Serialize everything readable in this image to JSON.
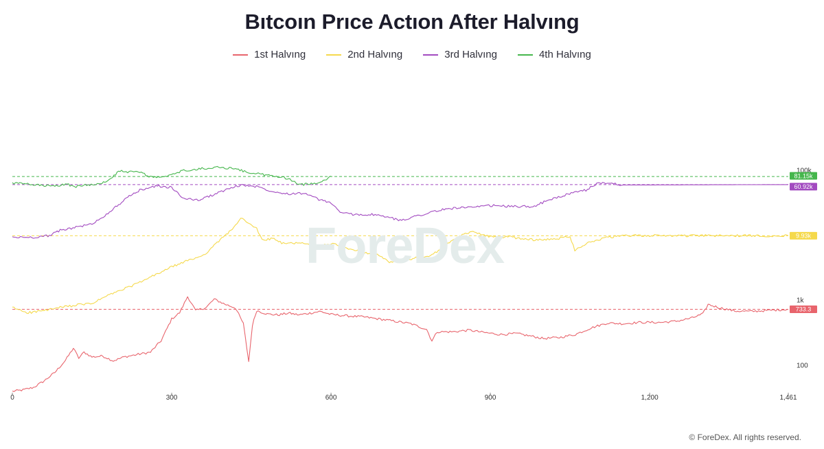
{
  "chart_data": {
    "type": "line",
    "title": "Bıtcoın Prıce Actıon After Halvıng",
    "xlabel": "",
    "ylabel": "",
    "y_scale": "log",
    "xlim": [
      0,
      1461
    ],
    "ylim": [
      40,
      200000
    ],
    "x_ticks": [
      {
        "value": 0,
        "label": "0"
      },
      {
        "value": 300,
        "label": "300"
      },
      {
        "value": 600,
        "label": "600"
      },
      {
        "value": 900,
        "label": "900"
      },
      {
        "value": 1200,
        "label": "1,200"
      },
      {
        "value": 1461,
        "label": "1,461"
      }
    ],
    "y_ticks": [
      {
        "value": 100,
        "label": "100"
      },
      {
        "value": 1000,
        "label": "1k"
      },
      {
        "value": 100000,
        "label": "100k"
      }
    ],
    "legend_position": "top-center",
    "grid": false,
    "series": [
      {
        "name": "1st Halvıng",
        "color": "#e8646c",
        "last_label": "733.3",
        "last_value": 733.3,
        "points": [
          [
            0,
            40
          ],
          [
            20,
            42
          ],
          [
            40,
            46
          ],
          [
            60,
            58
          ],
          [
            80,
            78
          ],
          [
            100,
            120
          ],
          [
            115,
            185
          ],
          [
            125,
            130
          ],
          [
            135,
            160
          ],
          [
            150,
            135
          ],
          [
            170,
            140
          ],
          [
            190,
            118
          ],
          [
            210,
            135
          ],
          [
            240,
            150
          ],
          [
            260,
            160
          ],
          [
            280,
            240
          ],
          [
            300,
            520
          ],
          [
            315,
            650
          ],
          [
            330,
            1150
          ],
          [
            345,
            700
          ],
          [
            365,
            780
          ],
          [
            380,
            1050
          ],
          [
            400,
            880
          ],
          [
            420,
            770
          ],
          [
            435,
            440
          ],
          [
            445,
            115
          ],
          [
            452,
            420
          ],
          [
            460,
            700
          ],
          [
            480,
            620
          ],
          [
            500,
            600
          ],
          [
            520,
            640
          ],
          [
            540,
            600
          ],
          [
            560,
            640
          ],
          [
            580,
            680
          ],
          [
            600,
            610
          ],
          [
            630,
            580
          ],
          [
            660,
            560
          ],
          [
            690,
            520
          ],
          [
            720,
            480
          ],
          [
            750,
            440
          ],
          [
            780,
            360
          ],
          [
            790,
            240
          ],
          [
            800,
            330
          ],
          [
            830,
            330
          ],
          [
            860,
            350
          ],
          [
            890,
            320
          ],
          [
            920,
            300
          ],
          [
            950,
            310
          ],
          [
            980,
            280
          ],
          [
            1000,
            260
          ],
          [
            1030,
            270
          ],
          [
            1060,
            300
          ],
          [
            1090,
            380
          ],
          [
            1120,
            450
          ],
          [
            1150,
            440
          ],
          [
            1180,
            460
          ],
          [
            1220,
            460
          ],
          [
            1250,
            480
          ],
          [
            1280,
            540
          ],
          [
            1300,
            620
          ],
          [
            1310,
            870
          ],
          [
            1330,
            780
          ],
          [
            1360,
            690
          ],
          [
            1390,
            680
          ],
          [
            1420,
            700
          ],
          [
            1461,
            733.3
          ]
        ]
      },
      {
        "name": "2nd Halvıng",
        "color": "#f5d94c",
        "last_label": "9.93k",
        "last_value": 9930,
        "points": [
          [
            0,
            780
          ],
          [
            30,
            650
          ],
          [
            60,
            700
          ],
          [
            90,
            780
          ],
          [
            120,
            850
          ],
          [
            150,
            900
          ],
          [
            180,
            1200
          ],
          [
            210,
            1500
          ],
          [
            240,
            1900
          ],
          [
            270,
            2500
          ],
          [
            300,
            3300
          ],
          [
            330,
            4100
          ],
          [
            360,
            5000
          ],
          [
            380,
            7000
          ],
          [
            400,
            10000
          ],
          [
            420,
            14000
          ],
          [
            430,
            19000
          ],
          [
            440,
            16000
          ],
          [
            460,
            13000
          ],
          [
            470,
            8500
          ],
          [
            490,
            9000
          ],
          [
            510,
            7500
          ],
          [
            540,
            7800
          ],
          [
            570,
            6800
          ],
          [
            600,
            7500
          ],
          [
            630,
            6400
          ],
          [
            660,
            5600
          ],
          [
            690,
            5000
          ],
          [
            710,
            3800
          ],
          [
            730,
            4200
          ],
          [
            760,
            4500
          ],
          [
            790,
            5000
          ],
          [
            820,
            7500
          ],
          [
            850,
            10500
          ],
          [
            870,
            11500
          ],
          [
            900,
            9500
          ],
          [
            930,
            9600
          ],
          [
            960,
            9000
          ],
          [
            990,
            8500
          ],
          [
            1020,
            8800
          ],
          [
            1050,
            9800
          ],
          [
            1059,
            6000
          ],
          [
            1080,
            7500
          ],
          [
            1110,
            9000
          ],
          [
            1140,
            9800
          ],
          [
            1170,
            10000
          ],
          [
            1461,
            9930
          ]
        ]
      },
      {
        "name": "3rd Halvıng",
        "color": "#a24ac0",
        "last_label": "60.92k",
        "last_value": 60920,
        "points": [
          [
            0,
            9400
          ],
          [
            40,
            9400
          ],
          [
            70,
            10000
          ],
          [
            90,
            12000
          ],
          [
            120,
            13500
          ],
          [
            150,
            15000
          ],
          [
            180,
            22000
          ],
          [
            200,
            30000
          ],
          [
            220,
            40000
          ],
          [
            240,
            50000
          ],
          [
            270,
            58000
          ],
          [
            300,
            55000
          ],
          [
            320,
            38000
          ],
          [
            350,
            35000
          ],
          [
            370,
            40000
          ],
          [
            400,
            50000
          ],
          [
            430,
            60000
          ],
          [
            460,
            57000
          ],
          [
            490,
            48000
          ],
          [
            520,
            44000
          ],
          [
            550,
            45000
          ],
          [
            580,
            35000
          ],
          [
            600,
            32000
          ],
          [
            620,
            22000
          ],
          [
            650,
            21000
          ],
          [
            680,
            21000
          ],
          [
            710,
            19000
          ],
          [
            730,
            17000
          ],
          [
            760,
            20000
          ],
          [
            790,
            23000
          ],
          [
            810,
            25000
          ],
          [
            840,
            27000
          ],
          [
            870,
            27000
          ],
          [
            900,
            29000
          ],
          [
            940,
            28000
          ],
          [
            980,
            28000
          ],
          [
            1010,
            35000
          ],
          [
            1040,
            42000
          ],
          [
            1080,
            50000
          ],
          [
            1100,
            63000
          ],
          [
            1120,
            65000
          ],
          [
            1150,
            60000
          ],
          [
            1461,
            60920
          ]
        ]
      },
      {
        "name": "4th Halvıng",
        "color": "#45b64c",
        "last_label": "81.15k",
        "last_value": 81150,
        "points": [
          [
            0,
            64000
          ],
          [
            20,
            63000
          ],
          [
            40,
            60000
          ],
          [
            60,
            59000
          ],
          [
            80,
            57000
          ],
          [
            100,
            62000
          ],
          [
            120,
            57000
          ],
          [
            140,
            60000
          ],
          [
            160,
            63000
          ],
          [
            180,
            68000
          ],
          [
            200,
            98000
          ],
          [
            220,
            95000
          ],
          [
            240,
            95000
          ],
          [
            260,
            80000
          ],
          [
            280,
            78000
          ],
          [
            300,
            85000
          ],
          [
            320,
            100000
          ],
          [
            340,
            102000
          ],
          [
            360,
            108000
          ],
          [
            380,
            112000
          ],
          [
            400,
            110000
          ],
          [
            420,
            108000
          ],
          [
            440,
            95000
          ],
          [
            460,
            90000
          ],
          [
            480,
            85000
          ],
          [
            500,
            80000
          ],
          [
            520,
            76000
          ],
          [
            540,
            60000
          ],
          [
            560,
            63000
          ],
          [
            580,
            66000
          ],
          [
            600,
            82000
          ],
          [
            1461,
            81150
          ]
        ]
      }
    ],
    "reference_lines": [
      {
        "series": 0,
        "value": 733.3
      },
      {
        "series": 1,
        "value": 9930
      },
      {
        "series": 2,
        "value": 60920
      },
      {
        "series": 3,
        "value": 81150
      }
    ]
  },
  "watermark": "ForeDex",
  "footer": "© ForeDex. All rights reserved."
}
